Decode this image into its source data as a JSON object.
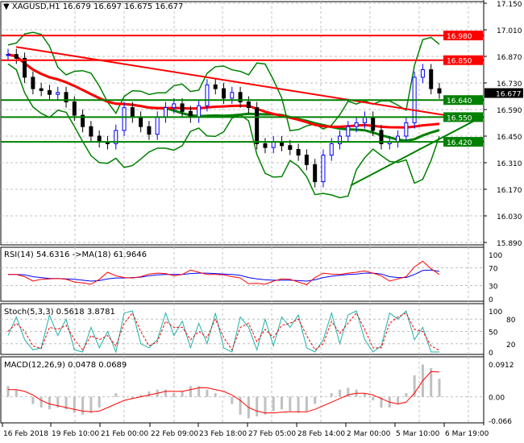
{
  "header": {
    "symbol": "XAGUSD,H1",
    "open": "16.679",
    "high": "16.697",
    "low": "16.675",
    "close": "16.677"
  },
  "colors": {
    "bull": "#0000ff",
    "bear": "#000000",
    "support": "#008000",
    "resistance": "#ff0000",
    "ma_fast": "#ff0000",
    "ma_slow": "#008000",
    "bands": "#008000",
    "rsi": "#ff0000",
    "rsi_ma": "#0000ff",
    "stoch_main": "#20b2aa",
    "stoch_signal": "#ff0000",
    "macd_hist": "#c0c0c0",
    "macd_signal": "#ff0000"
  },
  "chart_data": [
    {
      "type": "candlestick",
      "title": "XAGUSD,H1",
      "ylim": [
        15.89,
        17.15
      ],
      "y_ticks": [
        "17.150",
        "17.010",
        "16.870",
        "16.730",
        "16.590",
        "16.450",
        "16.310",
        "16.170",
        "16.030",
        "15.890"
      ],
      "x_ticks": [
        "16 Feb 2018",
        "19 Feb 10:00",
        "21 Feb 00:00",
        "22 Feb 09:00",
        "23 Feb 18:00",
        "27 Feb 05:00",
        "28 Feb 14:00",
        "2 Mar 00:00",
        "5 Mar 10:00",
        "6 Mar 19:00"
      ],
      "close": [
        16.88,
        16.86,
        16.76,
        16.7,
        16.69,
        16.67,
        16.68,
        16.63,
        16.56,
        16.5,
        16.45,
        16.42,
        16.41,
        16.48,
        16.6,
        16.55,
        16.5,
        16.46,
        16.55,
        16.6,
        16.62,
        16.58,
        16.55,
        16.61,
        16.72,
        16.7,
        16.65,
        16.68,
        16.63,
        16.6,
        16.41,
        16.39,
        16.42,
        16.4,
        16.38,
        16.35,
        16.3,
        16.21,
        16.35,
        16.41,
        16.45,
        16.5,
        16.52,
        16.55,
        16.48,
        16.41,
        16.42,
        16.45,
        16.52,
        16.76,
        16.8,
        16.7,
        16.677
      ],
      "levels": [
        {
          "label": "16.980",
          "kind": "resistance"
        },
        {
          "label": "16.850",
          "kind": "resistance"
        },
        {
          "label": "16.640",
          "kind": "support"
        },
        {
          "label": "16.550",
          "kind": "support"
        },
        {
          "label": "16.420",
          "kind": "support"
        }
      ],
      "current_price": "16.677",
      "trendlines": [
        {
          "kind": "resistance",
          "from": 16.92,
          "to": 16.53
        },
        {
          "kind": "support",
          "from": 16.19,
          "to": 16.55
        }
      ]
    },
    {
      "type": "line",
      "title": "RSI(14) 54.6316  ->MA(18) 61.9646",
      "ylim": [
        0,
        100
      ],
      "y_ticks": [
        "100",
        "70",
        "30",
        "0"
      ],
      "rsi": [
        55,
        55,
        50,
        40,
        44,
        45,
        46,
        44,
        38,
        36,
        33,
        44,
        60,
        52,
        48,
        47,
        50,
        56,
        58,
        57,
        52,
        55,
        65,
        60,
        55,
        55,
        54,
        50,
        47,
        34,
        35,
        33,
        40,
        45,
        44,
        38,
        32,
        48,
        58,
        56,
        55,
        58,
        60,
        63,
        58,
        52,
        40,
        45,
        50,
        72,
        85,
        68,
        55
      ],
      "ma": [
        55,
        55,
        54,
        50,
        48,
        46,
        46,
        45,
        44,
        42,
        40,
        41,
        45,
        47,
        47,
        48,
        49,
        52,
        54,
        55,
        55,
        55,
        57,
        58,
        58,
        57,
        56,
        55,
        53,
        48,
        45,
        43,
        42,
        42,
        42,
        41,
        40,
        43,
        48,
        51,
        53,
        55,
        56,
        58,
        58,
        56,
        50,
        48,
        48,
        55,
        64,
        65,
        62
      ]
    },
    {
      "type": "line",
      "title": "Stoch(5,3,3) 0.5618 3.8781",
      "ylim": [
        0,
        100
      ],
      "y_ticks": [
        "100",
        "80",
        "50",
        "20",
        "0"
      ],
      "main": [
        40,
        85,
        30,
        5,
        10,
        90,
        40,
        80,
        5,
        0,
        60,
        10,
        50,
        0,
        95,
        100,
        20,
        10,
        30,
        95,
        40,
        75,
        10,
        70,
        20,
        95,
        10,
        0,
        85,
        60,
        5,
        80,
        15,
        85,
        60,
        90,
        10,
        0,
        30,
        95,
        20,
        90,
        100,
        30,
        0,
        15,
        95,
        80,
        100,
        30,
        60,
        0,
        0
      ],
      "signal": [
        50,
        70,
        50,
        15,
        8,
        60,
        55,
        65,
        30,
        5,
        40,
        30,
        40,
        15,
        70,
        95,
        50,
        15,
        25,
        75,
        60,
        60,
        30,
        50,
        35,
        80,
        35,
        5,
        60,
        70,
        25,
        55,
        35,
        65,
        70,
        80,
        40,
        5,
        20,
        75,
        45,
        70,
        95,
        55,
        10,
        10,
        70,
        85,
        95,
        55,
        50,
        15,
        4
      ]
    },
    {
      "type": "bar",
      "title": "MACD(12,26,9) 0.0478 0.0689",
      "ylim": [
        -0.066,
        0.0912
      ],
      "y_ticks": [
        "0.0912",
        "0.00",
        "-0.066"
      ],
      "hist": [
        0.03,
        0.02,
        0.0,
        -0.02,
        -0.03,
        -0.035,
        -0.03,
        -0.035,
        -0.045,
        -0.05,
        -0.045,
        -0.03,
        0.0,
        0.01,
        0.0,
        -0.005,
        0.005,
        0.015,
        0.02,
        0.02,
        0.01,
        0.015,
        0.03,
        0.03,
        0.02,
        0.01,
        0.0,
        -0.02,
        -0.05,
        -0.06,
        -0.055,
        -0.05,
        -0.04,
        -0.035,
        -0.04,
        -0.045,
        -0.04,
        -0.02,
        0.0,
        0.01,
        0.02,
        0.025,
        0.02,
        0.01,
        -0.01,
        -0.03,
        -0.03,
        -0.02,
        0.01,
        0.06,
        0.09,
        0.08,
        0.05
      ],
      "signal": [
        0.02,
        0.02,
        0.015,
        0.005,
        -0.01,
        -0.02,
        -0.025,
        -0.03,
        -0.035,
        -0.04,
        -0.042,
        -0.04,
        -0.03,
        -0.02,
        -0.01,
        -0.005,
        0.0,
        0.005,
        0.01,
        0.015,
        0.015,
        0.015,
        0.02,
        0.025,
        0.025,
        0.02,
        0.015,
        0.005,
        -0.01,
        -0.03,
        -0.04,
        -0.045,
        -0.045,
        -0.043,
        -0.042,
        -0.042,
        -0.042,
        -0.035,
        -0.025,
        -0.015,
        -0.005,
        0.005,
        0.01,
        0.01,
        0.005,
        -0.005,
        -0.015,
        -0.02,
        -0.015,
        0.01,
        0.045,
        0.07,
        0.0689
      ]
    }
  ]
}
